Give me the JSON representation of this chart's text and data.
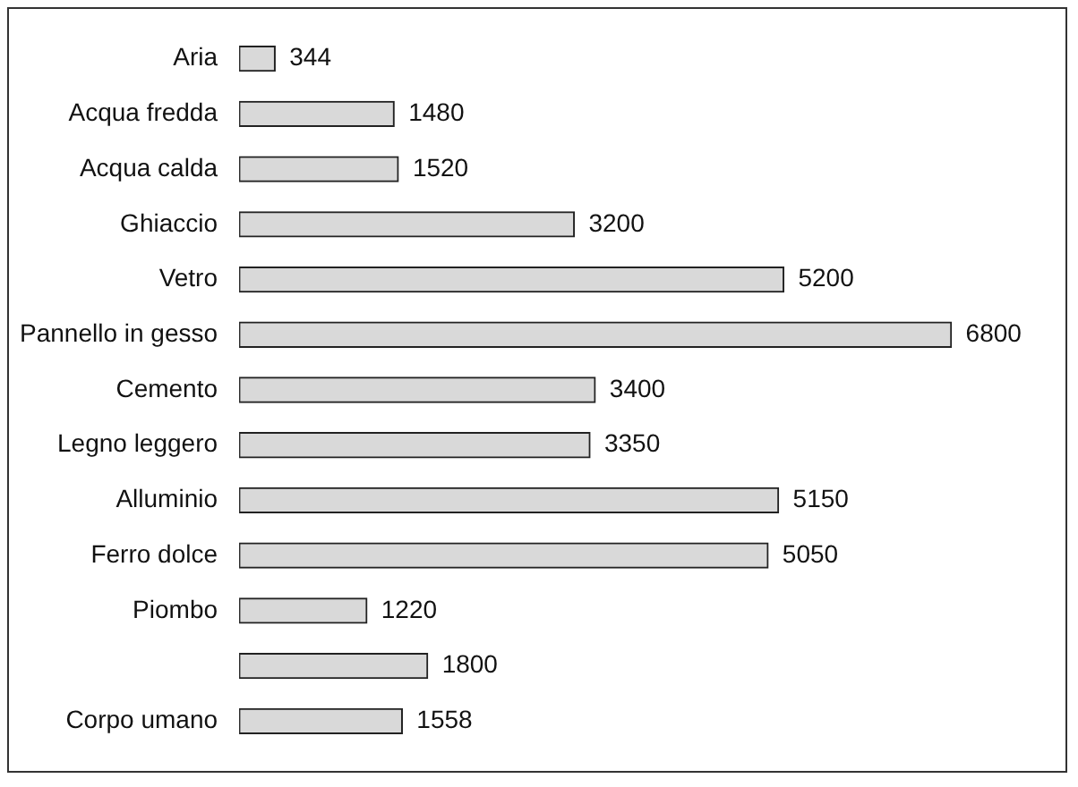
{
  "chart_data": {
    "type": "bar",
    "orientation": "horizontal",
    "data_labels": true,
    "categories": [
      "Aria",
      "Acqua fredda",
      "Acqua calda",
      "Ghiaccio",
      "Vetro",
      "Pannello in gesso",
      "Cemento",
      "Legno leggero",
      "Alluminio",
      "Ferro dolce",
      "Piombo",
      null,
      "Corpo umano"
    ],
    "values": [
      344,
      1480,
      1520,
      3200,
      5200,
      6800,
      3400,
      3350,
      5150,
      5050,
      1220,
      1800,
      1558
    ],
    "color": "#d9d9d9"
  }
}
